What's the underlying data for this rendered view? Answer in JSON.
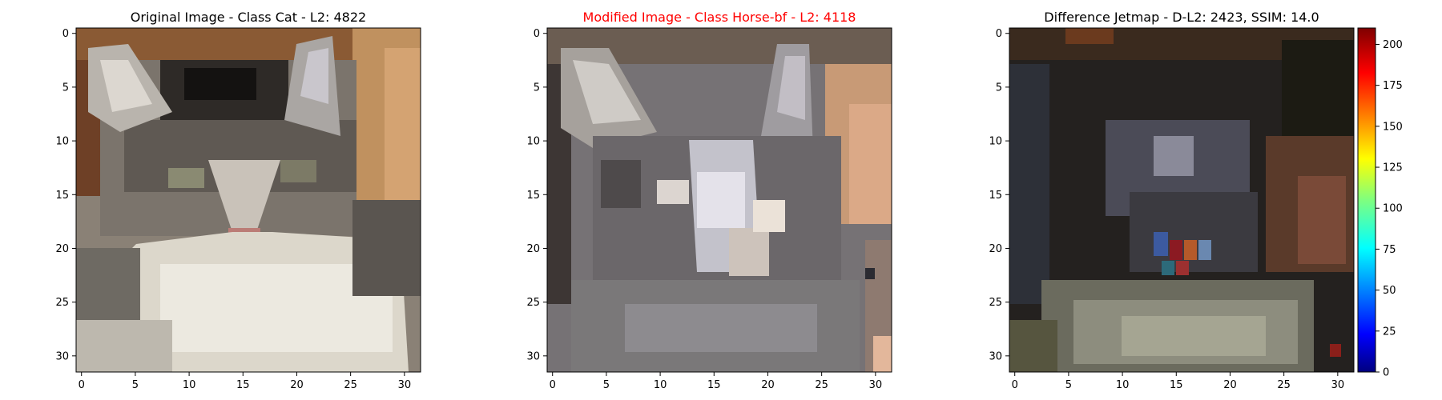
{
  "colors": {
    "title_normal": "#000000",
    "title_highlight": "#ff0000"
  },
  "chart_data": [
    {
      "type": "image",
      "title": "Original Image - Class Cat - L2: 4822",
      "title_color": "#000000",
      "xlim": [
        -0.5,
        31.5
      ],
      "ylim": [
        31.5,
        -0.5
      ],
      "x_ticks": [
        0,
        5,
        10,
        15,
        20,
        25,
        30
      ],
      "y_ticks": [
        0,
        5,
        10,
        15,
        20,
        25,
        30
      ],
      "image_description_name": "original-cat-image"
    },
    {
      "type": "image",
      "title": "Modified Image - Class Horse-bf - L2: 4118",
      "title_color": "#ff0000",
      "xlim": [
        -0.5,
        31.5
      ],
      "ylim": [
        31.5,
        -0.5
      ],
      "x_ticks": [
        0,
        5,
        10,
        15,
        20,
        25,
        30
      ],
      "y_ticks": [
        0,
        5,
        10,
        15,
        20,
        25,
        30
      ],
      "image_description_name": "modified-cat-image"
    },
    {
      "type": "heatmap",
      "title": "Difference Jetmap - D-L2: 2423, SSIM: 14.0",
      "title_color": "#000000",
      "xlim": [
        -0.5,
        31.5
      ],
      "ylim": [
        31.5,
        -0.5
      ],
      "x_ticks": [
        0,
        5,
        10,
        15,
        20,
        25,
        30
      ],
      "y_ticks": [
        0,
        5,
        10,
        15,
        20,
        25,
        30
      ],
      "colorbar": {
        "colormap": "jet",
        "range": [
          0,
          210
        ],
        "ticks": [
          0,
          25,
          50,
          75,
          100,
          125,
          150,
          175,
          200
        ]
      }
    }
  ]
}
